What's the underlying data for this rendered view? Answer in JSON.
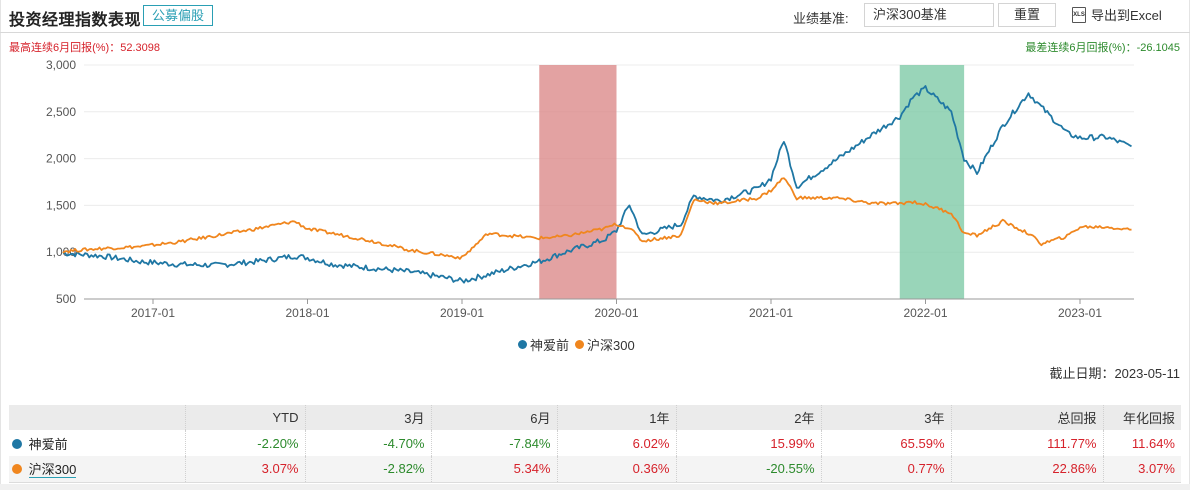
{
  "header": {
    "title": "投资经理指数表现",
    "tag": "公募偏股",
    "benchmark_label": "业绩基准:",
    "benchmark_value": "沪深300基准",
    "reset_label": "重置",
    "export_label": "导出到Excel",
    "export_icon": "xls-file-icon"
  },
  "stats": {
    "max_6m": "最高连续6月回报(%)：52.3098",
    "min_6m": "最差连续6月回报(%)：-26.1045"
  },
  "legend": [
    {
      "label": "神爱前",
      "color": "#1f77a4"
    },
    {
      "label": "沪深300",
      "color": "#f0861e"
    }
  ],
  "as_of": "截止日期：2023-05-11",
  "table": {
    "headers": [
      "",
      "YTD",
      "3月",
      "6月",
      "1年",
      "2年",
      "3年",
      "总回报",
      "年化回报"
    ],
    "rows": [
      {
        "name": "神爱前",
        "color": "#1f77a4",
        "values": [
          "-2.20%",
          "-4.70%",
          "-7.84%",
          "6.02%",
          "15.99%",
          "65.59%",
          "111.77%",
          "11.64%"
        ]
      },
      {
        "name": "沪深300",
        "color": "#f0861e",
        "values": [
          "3.07%",
          "-2.82%",
          "5.34%",
          "0.36%",
          "-20.55%",
          "0.77%",
          "22.86%",
          "3.07%"
        ]
      }
    ]
  },
  "colors": {
    "positive": "#d6222b",
    "negative": "#2c8a2c",
    "series1": "#1f77a4",
    "series2": "#f0861e",
    "band_best": "#dc8b8b",
    "band_worst": "#7fcba8"
  },
  "chart_data": {
    "type": "line",
    "title": "投资经理指数表现",
    "xlabel": "",
    "ylabel": "",
    "ylim": [
      500,
      3000
    ],
    "yticks": [
      "500",
      "1,000",
      "1,500",
      "2,000",
      "2,500",
      "3,000"
    ],
    "xticks": [
      "2017-01",
      "2018-01",
      "2019-01",
      "2020-01",
      "2021-01",
      "2022-01",
      "2023-01"
    ],
    "grid": true,
    "legend_position": "bottom",
    "bands": [
      {
        "label": "最高连续6月回报",
        "start": "2019-07",
        "end": "2020-01",
        "color": "#dc8b8b"
      },
      {
        "label": "最差连续6月回报",
        "start": "2021-11",
        "end": "2022-04",
        "color": "#7fcba8"
      }
    ],
    "x": [
      "2016-06",
      "2016-09",
      "2016-12",
      "2017-03",
      "2017-06",
      "2017-09",
      "2017-12",
      "2018-01",
      "2018-03",
      "2018-06",
      "2018-09",
      "2018-12",
      "2019-01",
      "2019-03",
      "2019-06",
      "2019-07",
      "2019-09",
      "2019-12",
      "2020-01",
      "2020-02",
      "2020-03",
      "2020-06",
      "2020-07",
      "2020-09",
      "2020-12",
      "2021-01",
      "2021-02",
      "2021-03",
      "2021-06",
      "2021-09",
      "2021-11",
      "2021-12",
      "2022-01",
      "2022-03",
      "2022-04",
      "2022-05",
      "2022-07",
      "2022-09",
      "2022-10",
      "2022-12",
      "2023-01",
      "2023-03",
      "2023-05"
    ],
    "series": [
      {
        "name": "神爱前",
        "values": [
          990,
          960,
          900,
          870,
          860,
          900,
          960,
          940,
          870,
          830,
          790,
          720,
          690,
          760,
          870,
          900,
          1000,
          1130,
          1230,
          1510,
          1180,
          1300,
          1600,
          1550,
          1680,
          1790,
          2200,
          1700,
          1980,
          2270,
          2450,
          2650,
          2750,
          2500,
          2000,
          1850,
          2350,
          2700,
          2550,
          2270,
          2220,
          2230,
          2130
        ]
      },
      {
        "name": "沪深300",
        "values": [
          1010,
          1040,
          1060,
          1110,
          1180,
          1250,
          1330,
          1250,
          1200,
          1120,
          1020,
          960,
          940,
          1200,
          1160,
          1150,
          1170,
          1250,
          1300,
          1260,
          1120,
          1180,
          1560,
          1520,
          1580,
          1660,
          1800,
          1580,
          1580,
          1520,
          1520,
          1540,
          1510,
          1420,
          1200,
          1180,
          1330,
          1200,
          1090,
          1170,
          1270,
          1270,
          1240
        ]
      }
    ]
  }
}
